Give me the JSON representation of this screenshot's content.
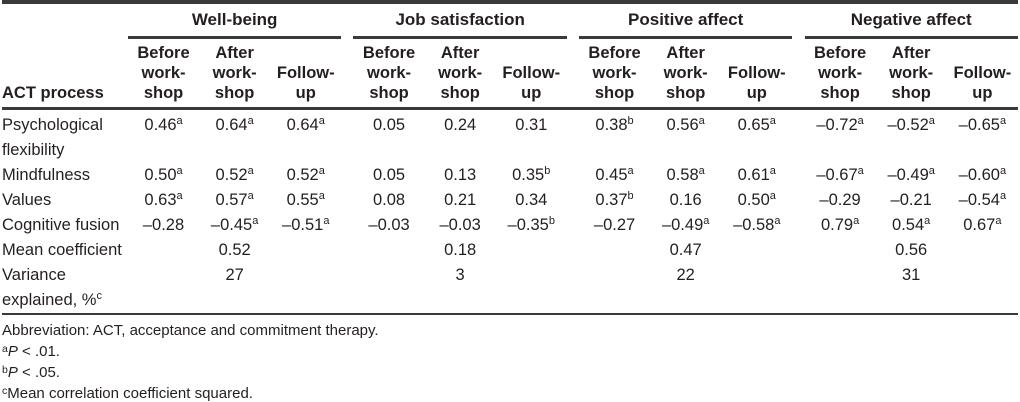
{
  "table": {
    "row_header": "ACT process",
    "groups": [
      {
        "label": "Well-being"
      },
      {
        "label": "Job satisfaction"
      },
      {
        "label": "Positive affect"
      },
      {
        "label": "Negative affect"
      }
    ],
    "subheaders": [
      "Before\nwork-\nshop",
      "After\nwork-\nshop",
      "Follow-\nup"
    ],
    "rows": [
      {
        "label": "Psychological flexibility",
        "cells": [
          "0.46^a",
          "0.64^a",
          "0.64^a",
          "0.05",
          "0.24",
          "0.31",
          "0.38^b",
          "0.56^a",
          "0.65^a",
          "–0.72^a",
          "–0.52^a",
          "–0.65^a"
        ]
      },
      {
        "label": "Mindfulness",
        "cells": [
          "0.50^a",
          "0.52^a",
          "0.52^a",
          "0.05",
          "0.13",
          "0.35^b",
          "0.45^a",
          "0.58^a",
          "0.61^a",
          "–0.67^a",
          "–0.49^a",
          "–0.60^a"
        ]
      },
      {
        "label": "Values",
        "cells": [
          "0.63^a",
          "0.57^a",
          "0.55^a",
          "0.08",
          "0.21",
          "0.34",
          "0.37^b",
          "0.16",
          "0.50^a",
          "–0.29",
          "–0.21",
          "–0.54^a"
        ]
      },
      {
        "label": "Cognitive fusion",
        "cells": [
          "–0.28",
          "–0.45^a",
          "–0.51^a",
          "–0.03",
          "–0.03",
          "–0.35^b",
          "–0.27",
          "–0.49^a",
          "–0.58^a",
          "0.79^a",
          "0.54^a",
          "0.67^a"
        ]
      },
      {
        "label": "Mean coefficient",
        "cells": [
          "",
          "0.52",
          "",
          "",
          "0.18",
          "",
          "",
          "0.47",
          "",
          "",
          "0.56",
          ""
        ]
      },
      {
        "label": "Variance explained, %^c",
        "cells": [
          "",
          "27",
          "",
          "",
          "3",
          "",
          "",
          "22",
          "",
          "",
          "31",
          ""
        ]
      }
    ],
    "footnotes": [
      [
        {
          "t": "Abbreviation: ACT, acceptance and commitment therapy."
        }
      ],
      [
        {
          "t": "a",
          "s": "sup"
        },
        {
          "t": "P",
          "s": "i"
        },
        {
          "t": " < .01."
        }
      ],
      [
        {
          "t": "b",
          "s": "sup"
        },
        {
          "t": "P",
          "s": "i"
        },
        {
          "t": " < .05."
        }
      ],
      [
        {
          "t": "c",
          "s": "sup"
        },
        {
          "t": "Mean correlation coefficient squared."
        }
      ]
    ],
    "colors": {
      "text": "#231f20",
      "rule": "#3a3a3a",
      "background": "#ffffff"
    }
  }
}
